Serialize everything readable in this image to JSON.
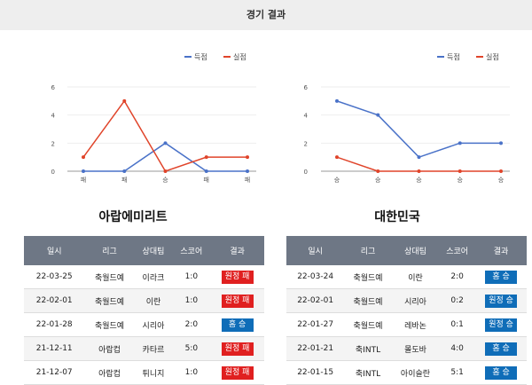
{
  "page": {
    "title": "경기 결과"
  },
  "legend": {
    "scored": "득점",
    "conceded": "실점"
  },
  "colors": {
    "scored": "#4a72c8",
    "conceded": "#e0442a",
    "win": "#0f6db8",
    "loss": "#e02020"
  },
  "table_headers": [
    "일시",
    "리그",
    "상대팀",
    "스코어",
    "결과"
  ],
  "teams": [
    {
      "name": "아랍에미리트",
      "chart_data": {
        "type": "line",
        "categories": [
          "패",
          "패",
          "승",
          "패",
          "패"
        ],
        "series": [
          {
            "name": "득점",
            "values": [
              0,
              0,
              2,
              0,
              0
            ]
          },
          {
            "name": "실점",
            "values": [
              1,
              5,
              0,
              1,
              1
            ]
          }
        ],
        "yticks": [
          0,
          2,
          4,
          6
        ],
        "ylim": [
          0,
          6
        ],
        "legend_position": "top-right"
      },
      "matches": [
        {
          "date": "22-03-25",
          "league": "축월드예",
          "opponent": "이라크",
          "score": "1:0",
          "result": "원정 패",
          "type": "loss"
        },
        {
          "date": "22-02-01",
          "league": "축월드예",
          "opponent": "이란",
          "score": "1:0",
          "result": "원정 패",
          "type": "loss"
        },
        {
          "date": "22-01-28",
          "league": "축월드예",
          "opponent": "시리아",
          "score": "2:0",
          "result": "홈 승",
          "type": "win"
        },
        {
          "date": "21-12-11",
          "league": "아랍컵",
          "opponent": "카타르",
          "score": "5:0",
          "result": "원정 패",
          "type": "loss"
        },
        {
          "date": "21-12-07",
          "league": "아랍컵",
          "opponent": "튀니지",
          "score": "1:0",
          "result": "원정 패",
          "type": "loss"
        }
      ]
    },
    {
      "name": "대한민국",
      "chart_data": {
        "type": "line",
        "categories": [
          "승",
          "승",
          "승",
          "승",
          "승"
        ],
        "series": [
          {
            "name": "득점",
            "values": [
              5,
              4,
              1,
              2,
              2
            ]
          },
          {
            "name": "실점",
            "values": [
              1,
              0,
              0,
              0,
              0
            ]
          }
        ],
        "yticks": [
          0,
          2,
          4,
          6
        ],
        "ylim": [
          0,
          6
        ],
        "legend_position": "top-right"
      },
      "matches": [
        {
          "date": "22-03-24",
          "league": "축월드예",
          "opponent": "이란",
          "score": "2:0",
          "result": "홈 승",
          "type": "win"
        },
        {
          "date": "22-02-01",
          "league": "축월드예",
          "opponent": "시리아",
          "score": "0:2",
          "result": "원정 승",
          "type": "win"
        },
        {
          "date": "22-01-27",
          "league": "축월드예",
          "opponent": "레바논",
          "score": "0:1",
          "result": "원정 승",
          "type": "win"
        },
        {
          "date": "22-01-21",
          "league": "축INTL",
          "opponent": "몰도바",
          "score": "4:0",
          "result": "홈 승",
          "type": "win"
        },
        {
          "date": "22-01-15",
          "league": "축INTL",
          "opponent": "아이슬란",
          "score": "5:1",
          "result": "홈 승",
          "type": "win"
        }
      ]
    }
  ]
}
